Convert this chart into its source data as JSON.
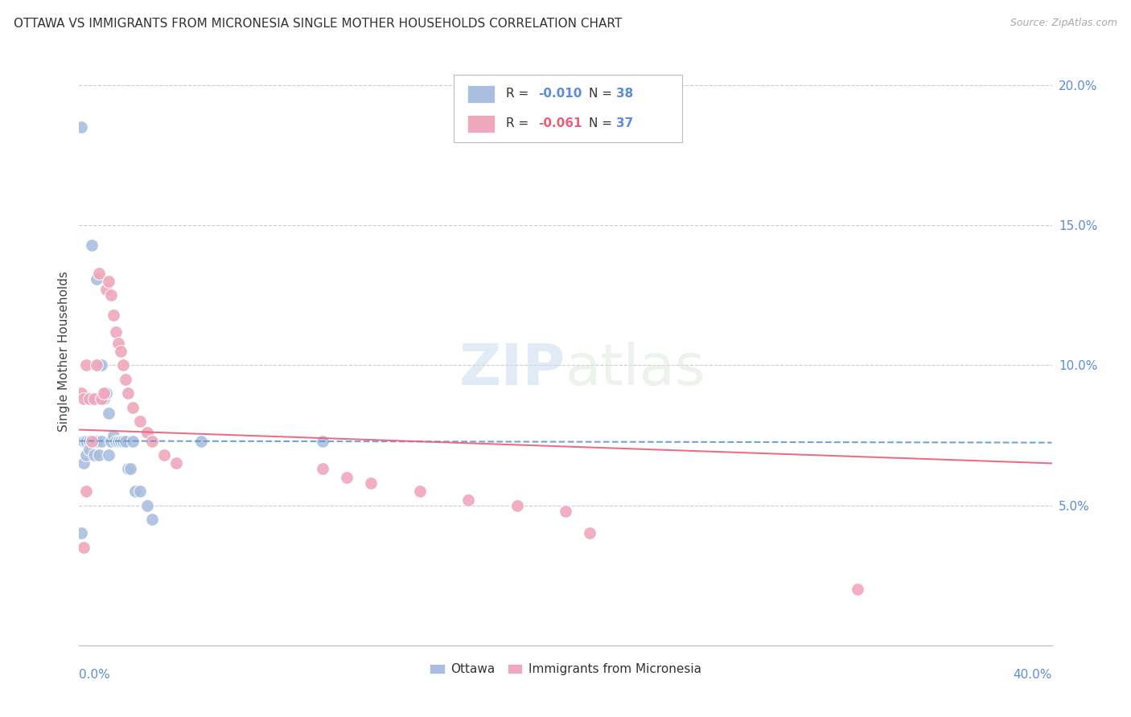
{
  "title": "OTTAWA VS IMMIGRANTS FROM MICRONESIA SINGLE MOTHER HOUSEHOLDS CORRELATION CHART",
  "source": "Source: ZipAtlas.com",
  "ylabel": "Single Mother Households",
  "xlim": [
    0.0,
    0.4
  ],
  "ylim": [
    0.0,
    0.21
  ],
  "ytick_vals": [
    0.05,
    0.1,
    0.15,
    0.2
  ],
  "ytick_labels": [
    "5.0%",
    "10.0%",
    "15.0%",
    "20.0%"
  ],
  "legend1_R": "-0.010",
  "legend1_N": "38",
  "legend2_R": "-0.061",
  "legend2_N": "37",
  "blue_color": "#aabfdf",
  "pink_color": "#f0a8bc",
  "blue_line_color": "#6699cc",
  "pink_line_color": "#e8607a",
  "background_color": "#ffffff",
  "grid_color": "#cccccc",
  "ottawa_x": [
    0.001,
    0.002,
    0.002,
    0.003,
    0.003,
    0.004,
    0.004,
    0.005,
    0.005,
    0.006,
    0.006,
    0.007,
    0.007,
    0.008,
    0.008,
    0.009,
    0.009,
    0.01,
    0.011,
    0.012,
    0.012,
    0.013,
    0.014,
    0.015,
    0.016,
    0.017,
    0.018,
    0.019,
    0.02,
    0.021,
    0.022,
    0.023,
    0.025,
    0.028,
    0.03,
    0.05,
    0.1,
    0.001
  ],
  "ottawa_y": [
    0.185,
    0.073,
    0.065,
    0.073,
    0.068,
    0.073,
    0.07,
    0.143,
    0.088,
    0.073,
    0.068,
    0.131,
    0.073,
    0.1,
    0.068,
    0.1,
    0.073,
    0.088,
    0.09,
    0.083,
    0.068,
    0.073,
    0.075,
    0.073,
    0.073,
    0.073,
    0.073,
    0.073,
    0.063,
    0.063,
    0.073,
    0.055,
    0.055,
    0.05,
    0.045,
    0.073,
    0.073,
    0.04
  ],
  "micro_x": [
    0.001,
    0.002,
    0.003,
    0.004,
    0.005,
    0.006,
    0.007,
    0.008,
    0.009,
    0.01,
    0.011,
    0.012,
    0.013,
    0.014,
    0.015,
    0.016,
    0.017,
    0.018,
    0.019,
    0.02,
    0.022,
    0.025,
    0.028,
    0.03,
    0.035,
    0.04,
    0.1,
    0.11,
    0.12,
    0.14,
    0.16,
    0.18,
    0.2,
    0.21,
    0.32,
    0.002,
    0.003
  ],
  "micro_y": [
    0.09,
    0.088,
    0.1,
    0.088,
    0.073,
    0.088,
    0.1,
    0.133,
    0.088,
    0.09,
    0.127,
    0.13,
    0.125,
    0.118,
    0.112,
    0.108,
    0.105,
    0.1,
    0.095,
    0.09,
    0.085,
    0.08,
    0.076,
    0.073,
    0.068,
    0.065,
    0.063,
    0.06,
    0.058,
    0.055,
    0.052,
    0.05,
    0.048,
    0.04,
    0.02,
    0.035,
    0.055
  ]
}
